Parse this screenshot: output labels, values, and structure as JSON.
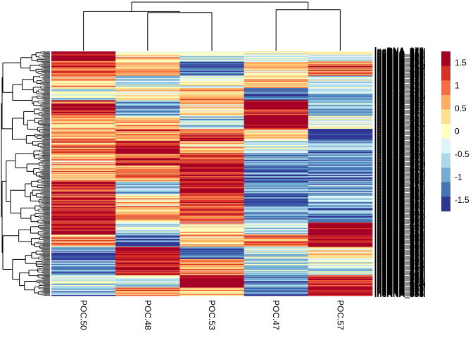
{
  "chart_data": {
    "type": "heatmap",
    "title": "",
    "columns": [
      "POC.50",
      "POC.48",
      "POC.53",
      "POC.47",
      "POC.57"
    ],
    "row_label_prefix": "lncRNA_",
    "row_count_estimate": 300,
    "row_labels_legible": false,
    "scale": {
      "breaks": [
        -1.75,
        -1.5,
        -1.25,
        -1.0,
        -0.75,
        -0.5,
        -0.25,
        0.0,
        0.25,
        0.5,
        0.75,
        1.0,
        1.25,
        1.5,
        1.75
      ],
      "colors": [
        "#313695",
        "#4575B4",
        "#74ADD1",
        "#ABD9E9",
        "#E0F3F8",
        "#FFFFBF",
        "#FEE090",
        "#FDAE61",
        "#F46D43",
        "#D73027",
        "#A50026"
      ],
      "tick_labels": [
        "1.5",
        "1",
        "0.5",
        "0",
        "-0.5",
        "-1",
        "-1.5"
      ],
      "tick_values": [
        1.5,
        1.0,
        0.5,
        0.0,
        -0.5,
        -1.0,
        -1.5
      ],
      "range": [
        -1.75,
        1.75
      ]
    },
    "column_dendrogram": {
      "order": [
        "POC.50",
        "POC.48",
        "POC.53",
        "POC.47",
        "POC.57"
      ],
      "merges": [
        {
          "left": "POC.48",
          "right": "POC.53",
          "height": 0.78
        },
        {
          "left": "POC.50",
          "right": "POC.48+POC.53",
          "height": 0.8
        },
        {
          "left": "POC.47",
          "right": "POC.57",
          "height": 0.84
        },
        {
          "left": "POC.50+POC.48+POC.53",
          "right": "POC.47+POC.57",
          "height": 1.0
        }
      ]
    },
    "row_blocks": [
      {
        "rows": [
          0,
          12
        ],
        "values": [
          1.75,
          0.25,
          -0.5,
          -0.25,
          -0.25
        ]
      },
      {
        "rows": [
          12,
          30
        ],
        "values": [
          1.1,
          0.5,
          -1.3,
          0.3,
          0.9
        ]
      },
      {
        "rows": [
          30,
          45
        ],
        "values": [
          0.3,
          -0.6,
          0.1,
          0.5,
          -0.4
        ]
      },
      {
        "rows": [
          45,
          60
        ],
        "values": [
          -0.3,
          0.1,
          0.6,
          -1.4,
          -0.8
        ]
      },
      {
        "rows": [
          60,
          80
        ],
        "values": [
          1.3,
          -0.9,
          0.2,
          1.6,
          -0.6
        ]
      },
      {
        "rows": [
          80,
          95
        ],
        "values": [
          0.5,
          0.4,
          -0.6,
          1.8,
          -0.2
        ]
      },
      {
        "rows": [
          95,
          110
        ],
        "values": [
          0.7,
          0.9,
          1.2,
          0.2,
          -1.7
        ]
      },
      {
        "rows": [
          110,
          125
        ],
        "values": [
          0.8,
          1.4,
          0.4,
          -0.3,
          -1.0
        ]
      },
      {
        "rows": [
          125,
          140
        ],
        "values": [
          0.3,
          1.2,
          1.1,
          -1.1,
          -1.0
        ]
      },
      {
        "rows": [
          140,
          160
        ],
        "values": [
          0.6,
          0.8,
          1.5,
          -1.0,
          -1.0
        ]
      },
      {
        "rows": [
          160,
          175
        ],
        "values": [
          1.3,
          -0.7,
          1.7,
          -0.9,
          -1.0
        ]
      },
      {
        "rows": [
          175,
          190
        ],
        "values": [
          1.2,
          0.2,
          1.2,
          -1.5,
          -0.8
        ]
      },
      {
        "rows": [
          190,
          210
        ],
        "values": [
          1.4,
          0.6,
          1.1,
          -1.0,
          -1.0
        ]
      },
      {
        "rows": [
          210,
          225
        ],
        "values": [
          1.6,
          -0.5,
          0.2,
          -0.6,
          1.8
        ]
      },
      {
        "rows": [
          225,
          240
        ],
        "values": [
          0.6,
          -1.2,
          0.4,
          1.0,
          1.7
        ]
      },
      {
        "rows": [
          240,
          255
        ],
        "values": [
          -1.2,
          1.8,
          -1.5,
          -0.3,
          0.2
        ]
      },
      {
        "rows": [
          255,
          275
        ],
        "values": [
          -1.1,
          1.6,
          0.5,
          -0.5,
          -0.4
        ]
      },
      {
        "rows": [
          275,
          290
        ],
        "values": [
          -0.5,
          -0.4,
          1.8,
          -1.2,
          1.2
        ]
      },
      {
        "rows": [
          290,
          300
        ],
        "values": [
          -0.9,
          0.9,
          0.6,
          -1.4,
          1.6
        ]
      }
    ]
  },
  "legend": {
    "position": "right",
    "tick_labels": [
      "1.5",
      "1",
      "0.5",
      "0",
      "-0.5",
      "-1",
      "-1.5"
    ]
  }
}
